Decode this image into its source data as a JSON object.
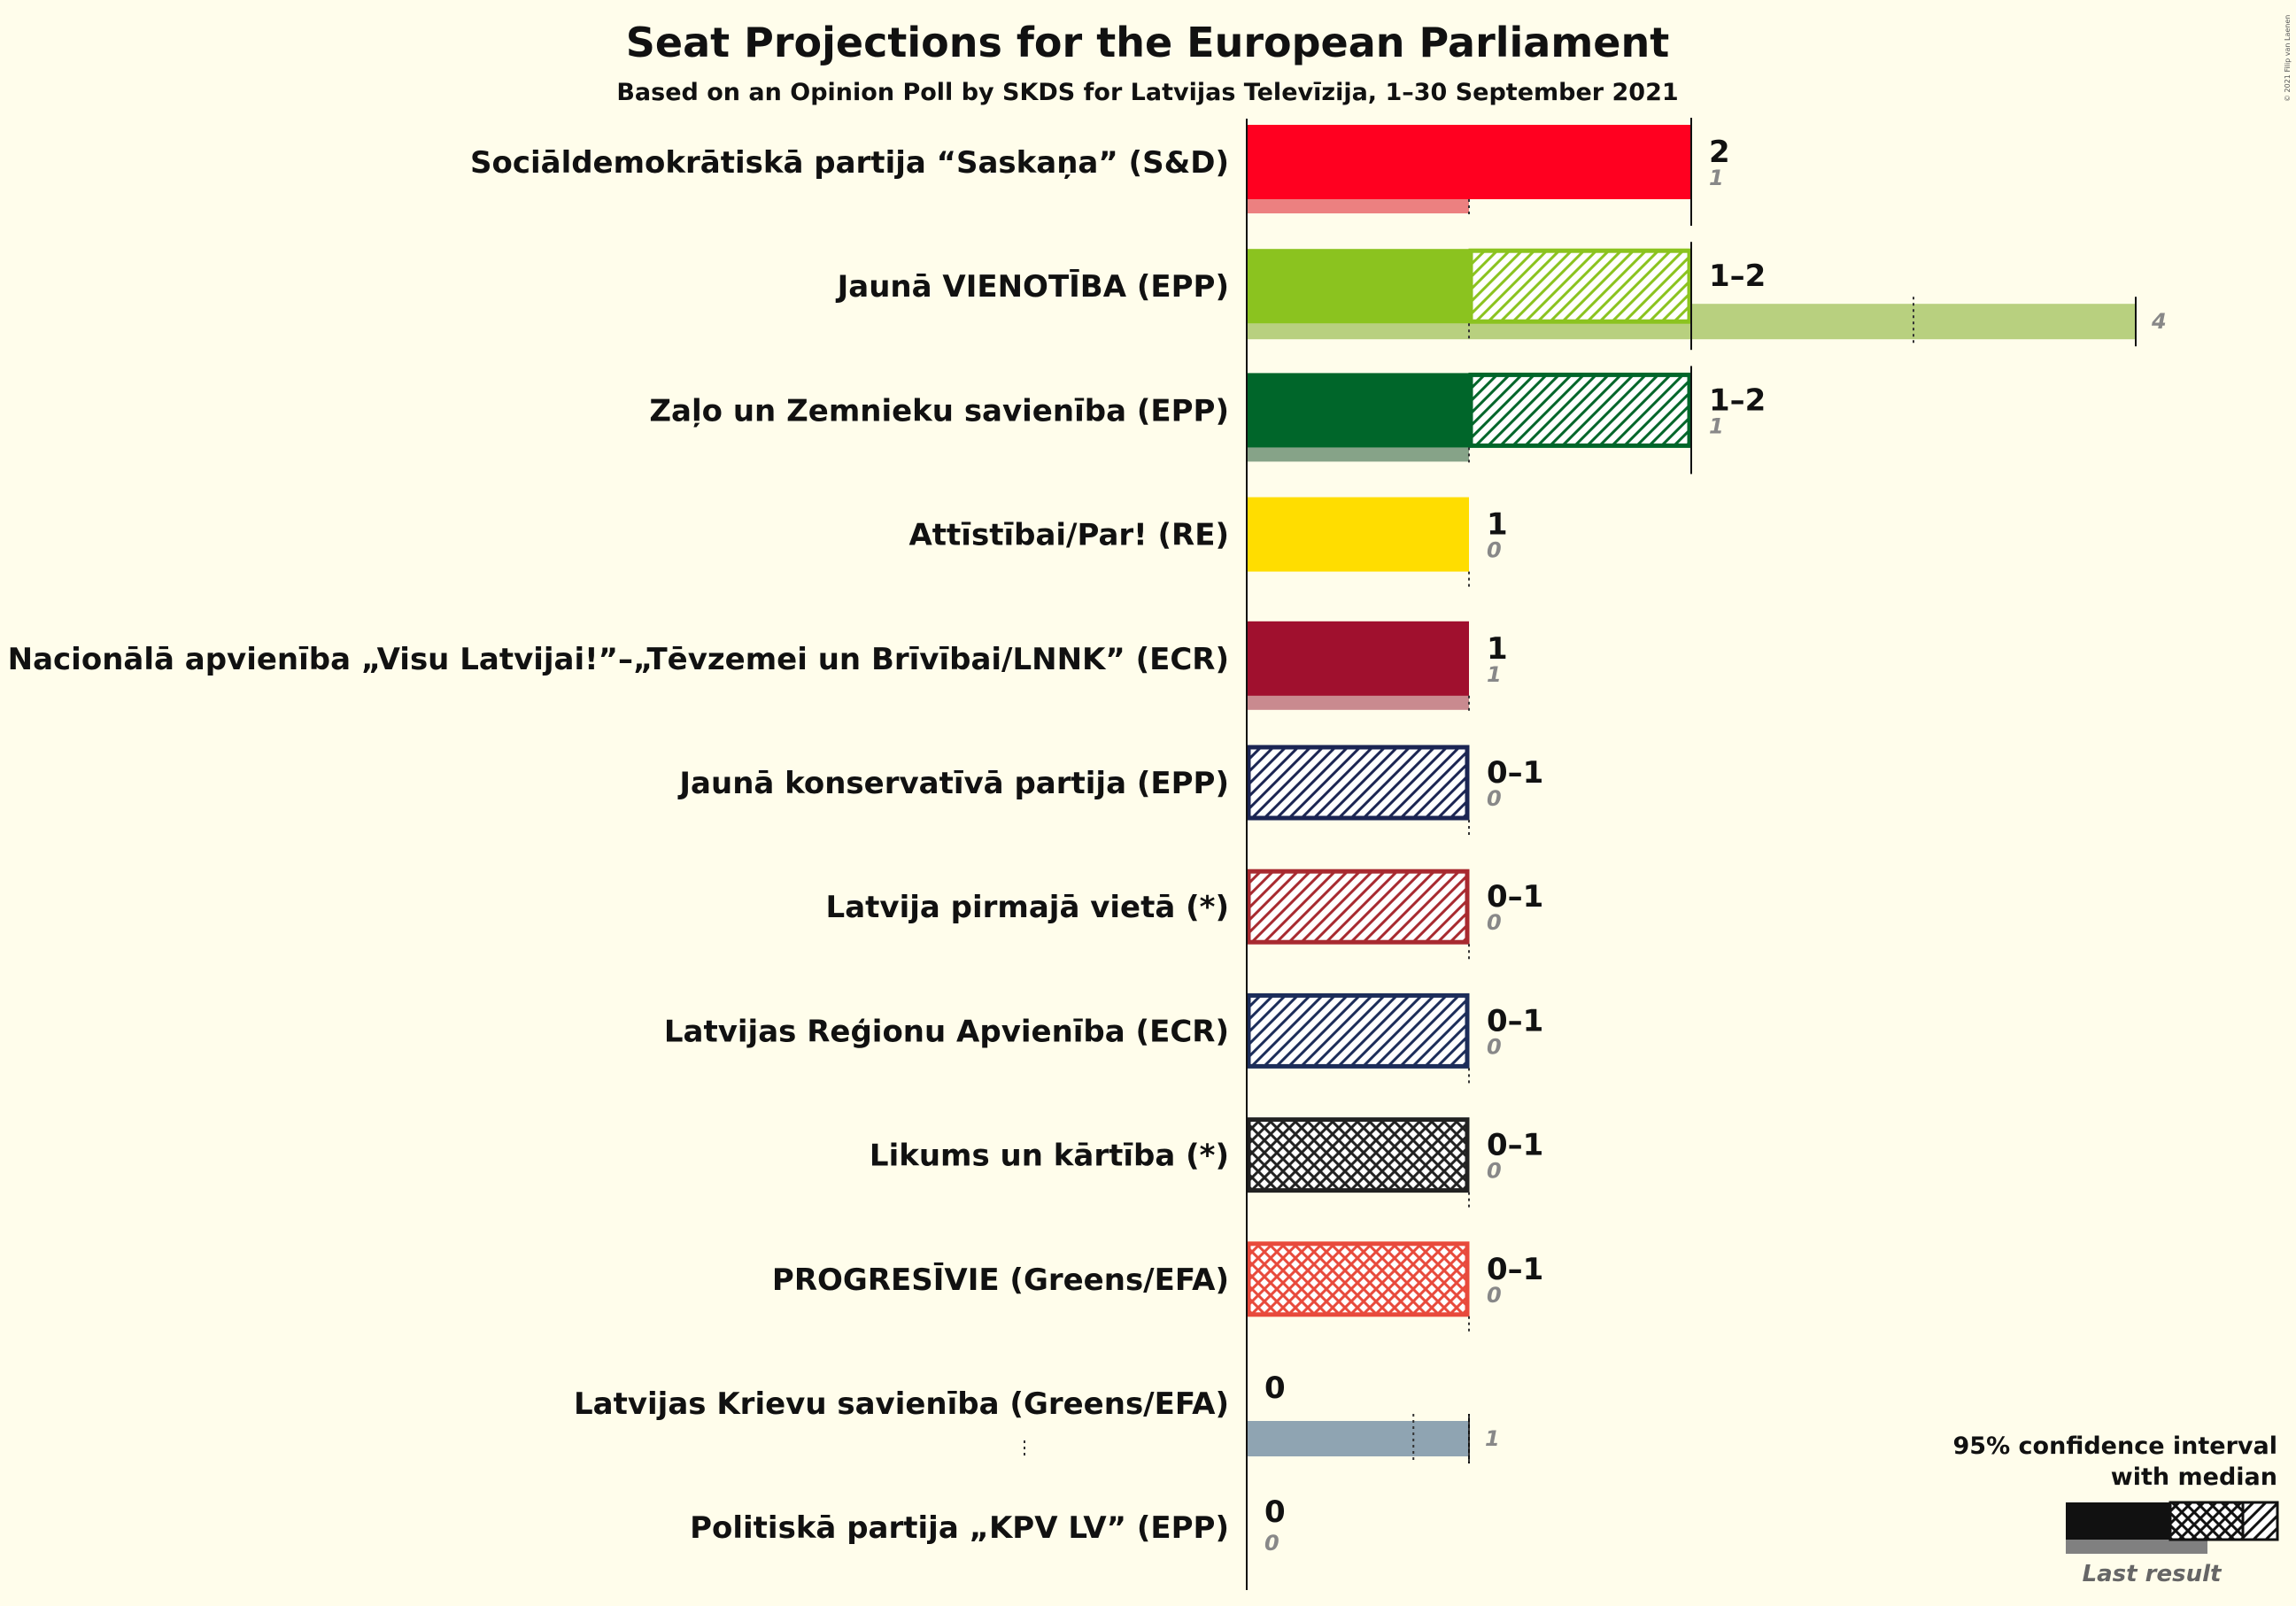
{
  "title": "Seat Projections for the European Parliament",
  "subtitle": "Based on an Opinion Poll by SKDS for Latvijas Televīzija, 1–30 September 2021",
  "copyright": "© 2021 Filip van Laenen",
  "legend": {
    "line1": "95% confidence interval",
    "line2": "with median",
    "last_result": "Last result"
  },
  "chart_data": {
    "type": "bar",
    "orientation": "horizontal",
    "title": "Seat Projections for the European Parliament",
    "subtitle": "Based on an Opinion Poll by SKDS for Latvijas Televīzija, 1–30 September 2021",
    "xlim": [
      0,
      4
    ],
    "parties": [
      {
        "name": "Sociāldemokrātiskā partija “Saskaņa” (S&D)",
        "low": 2,
        "high": 2,
        "median": 2,
        "range_label": "2",
        "last": 1,
        "last_label": "1",
        "color": "#ff0020",
        "last_color": "#ec8080",
        "pattern": "hatch"
      },
      {
        "name": "Jaunā VIENOTĪBA (EPP)",
        "low": 1,
        "high": 2,
        "median": 1,
        "range_label": "1–2",
        "last": 4,
        "last_label": "4",
        "color": "#8bc31f",
        "last_color": "#b8d07f",
        "pattern": "hatch"
      },
      {
        "name": "Zaļo un Zemnieku savienība (EPP)",
        "low": 1,
        "high": 2,
        "median": 1,
        "range_label": "1–2",
        "last": 1,
        "last_label": "1",
        "color": "#00662a",
        "last_color": "#86a388",
        "pattern": "hatch"
      },
      {
        "name": "Attīstībai/Par! (RE)",
        "low": 1,
        "high": 1,
        "median": 1,
        "range_label": "1",
        "last": 0,
        "last_label": "0",
        "color": "#ffdd00",
        "last_color": "#ffe97f",
        "pattern": "hatch"
      },
      {
        "name": "Nacionālā apvienība „Visu Latvijai!”–„Tēvzemei un Brīvībai/LNNK” (ECR)",
        "low": 1,
        "high": 1,
        "median": 1,
        "range_label": "1",
        "last": 1,
        "last_label": "1",
        "color": "#a0102e",
        "last_color": "#c98a8f",
        "pattern": "hatch"
      },
      {
        "name": "Jaunā konservatīvā partija (EPP)",
        "low": 0,
        "high": 1,
        "median": 0,
        "range_label": "0–1",
        "last": 0,
        "last_label": "0",
        "color": "#1b2553",
        "last_color": "#8c92a9",
        "pattern": "hatch"
      },
      {
        "name": "Latvija pirmajā vietā (*)",
        "low": 0,
        "high": 1,
        "median": 0,
        "range_label": "0–1",
        "last": 0,
        "last_label": "0",
        "color": "#a82a30",
        "last_color": "#d39497",
        "pattern": "hatch"
      },
      {
        "name": "Latvijas Reģionu Apvienība (ECR)",
        "low": 0,
        "high": 1,
        "median": 0,
        "range_label": "0–1",
        "last": 0,
        "last_label": "0",
        "color": "#1c2d5a",
        "last_color": "#8d96ac",
        "pattern": "hatch"
      },
      {
        "name": "Likums un kārtība (*)",
        "low": 0,
        "high": 1,
        "median": 0,
        "range_label": "0–1",
        "last": 0,
        "last_label": "0",
        "color": "#222222",
        "last_color": "#909090",
        "pattern": "cross"
      },
      {
        "name": "PROGRESĪVIE (Greens/EFA)",
        "low": 0,
        "high": 1,
        "median": 0,
        "range_label": "0–1",
        "last": 0,
        "last_label": "0",
        "color": "#e84a3c",
        "last_color": "#f3a49d",
        "pattern": "cross"
      },
      {
        "name": "Latvijas Krievu savienība (Greens/EFA)",
        "low": 0,
        "high": 0,
        "median": 0,
        "range_label": "0",
        "last": 1,
        "last_label": "1",
        "color": "#8fa4b2",
        "last_color": "#8fa4b2",
        "pattern": "hatch"
      },
      {
        "name": "Politiskā partija „KPV LV” (EPP)",
        "low": 0,
        "high": 0,
        "median": 0,
        "range_label": "0",
        "last": 0,
        "last_label": "0",
        "color": "#555555",
        "last_color": "#aaaaaa",
        "pattern": "hatch"
      }
    ]
  }
}
